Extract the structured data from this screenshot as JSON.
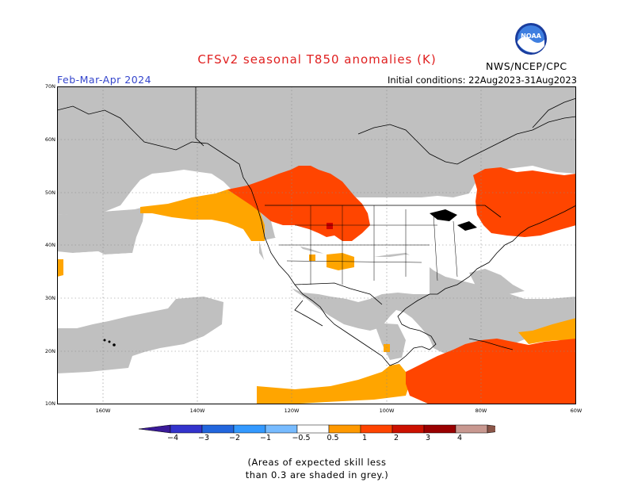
{
  "header": {
    "title": "CFSv2 seasonal T850 anomalies (K)",
    "period": "Feb-Mar-Apr 2024",
    "initial_conditions": "Initial conditions: 22Aug2023-31Aug2023",
    "agency": "NWS/NCEP/CPC",
    "logo_text": "NOAA"
  },
  "colors": {
    "title": "#e02020",
    "period": "#3344cc",
    "land_grey": "#c0c0c0",
    "ocean": "#ffffff",
    "anom_0_5": "#ffa500",
    "anom_1": "#ff4500",
    "anom_2": "#cc0000",
    "coastline": "#000000"
  },
  "axes": {
    "lat_labels": [
      "70N",
      "60N",
      "50N",
      "40N",
      "30N",
      "20N",
      "10N"
    ],
    "lon_labels": [
      "160W",
      "140W",
      "120W",
      "100W",
      "80W",
      "60W"
    ]
  },
  "colorbar": {
    "colors": [
      "#3a1a99",
      "#3333cc",
      "#2266dd",
      "#3399ff",
      "#77bbff",
      "#ffffff",
      "#ff9900",
      "#ff4400",
      "#cc1100",
      "#990000",
      "#c89890",
      "#8a5548"
    ],
    "ticks": [
      "−4",
      "−3",
      "−2",
      "−1",
      "−0.5",
      "0.5",
      "1",
      "2",
      "3",
      "4"
    ]
  },
  "note": {
    "line1": "(Areas of expected skill less",
    "line2": "than 0.3 are shaded in grey.)"
  }
}
